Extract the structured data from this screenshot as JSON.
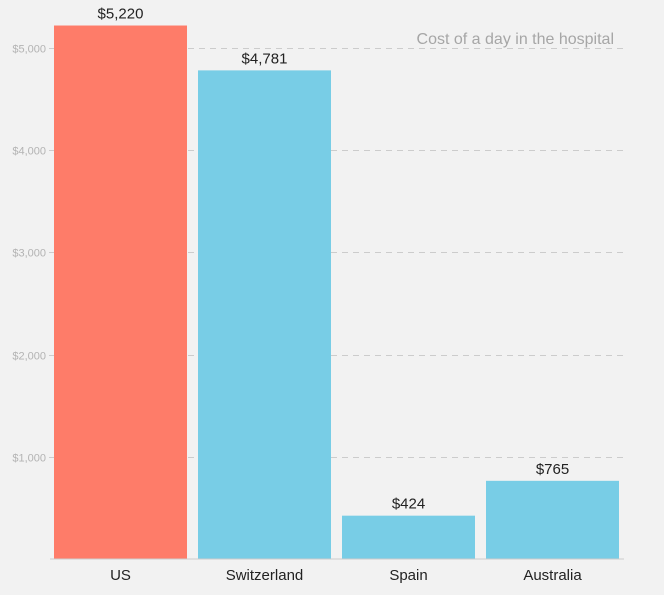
{
  "chart_data": {
    "type": "bar",
    "title": "Cost of a day in the hospital",
    "categories": [
      "US",
      "Switzerland",
      "Spain",
      "Australia"
    ],
    "values": [
      5220,
      4781,
      424,
      765
    ],
    "value_labels": [
      "$5,220",
      "$4,781",
      "$424",
      "$765"
    ],
    "colors": [
      "#fe7c69",
      "#78cde6",
      "#78cde6",
      "#78cde6"
    ],
    "yticks": [
      1000,
      2000,
      3000,
      4000,
      5000
    ],
    "ytick_labels": [
      "$1,000",
      "$2,000",
      "$3,000",
      "$4,000",
      "$5,000"
    ],
    "ylim": [
      0,
      5220
    ],
    "grid": true,
    "xlabel": "",
    "ylabel": ""
  }
}
